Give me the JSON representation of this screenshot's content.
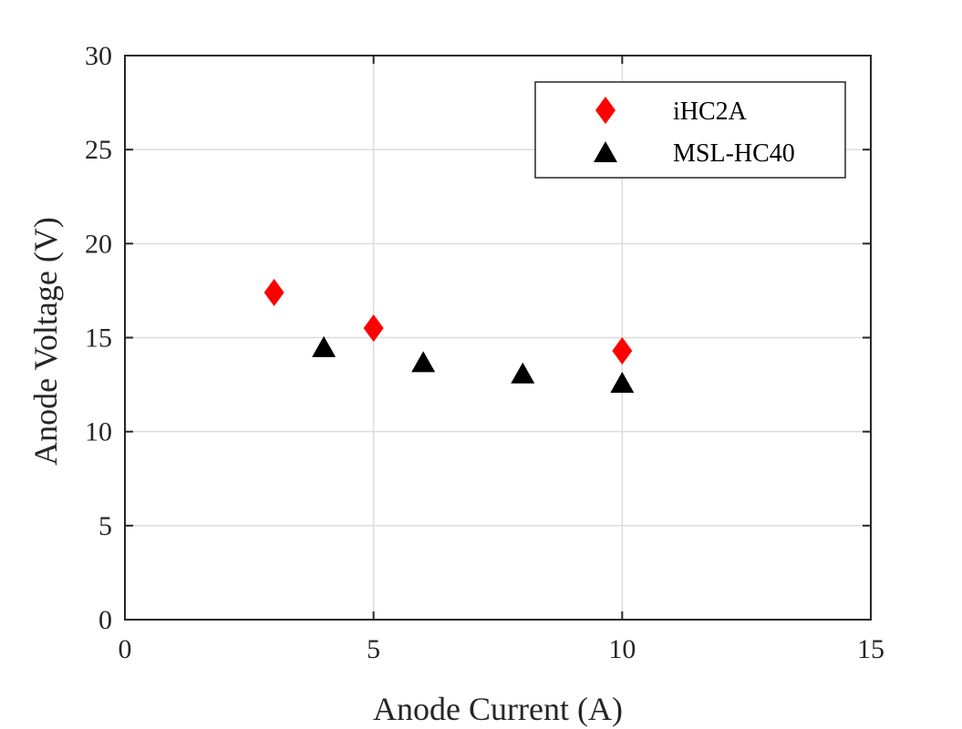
{
  "chart_data": {
    "type": "scatter",
    "title": "",
    "xlabel": "Anode Current (A)",
    "ylabel": "Anode Voltage (V)",
    "xlim": [
      0,
      15
    ],
    "ylim": [
      0,
      30
    ],
    "xticks": [
      0,
      5,
      10,
      15
    ],
    "yticks": [
      0,
      5,
      10,
      15,
      20,
      25,
      30
    ],
    "grid": true,
    "legend_position": "top-right",
    "series": [
      {
        "name": "iHC2A",
        "marker": "diamond",
        "color": "#ff0000",
        "x": [
          3,
          5,
          10
        ],
        "y": [
          17.4,
          15.5,
          14.3
        ]
      },
      {
        "name": "MSL-HC40",
        "marker": "triangle",
        "color": "#000000",
        "x": [
          4,
          6,
          8,
          10
        ],
        "y": [
          14.5,
          13.7,
          13.1,
          12.6
        ]
      }
    ]
  }
}
